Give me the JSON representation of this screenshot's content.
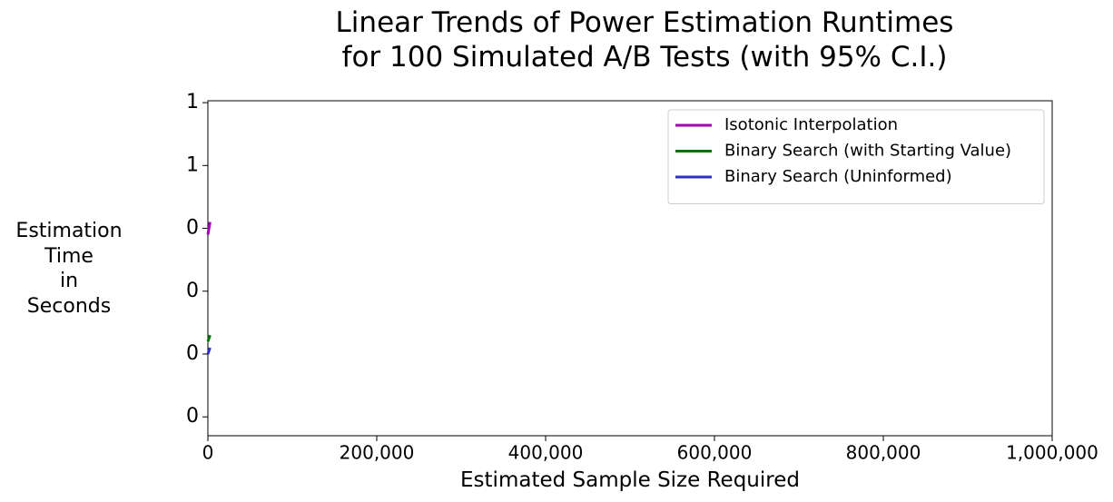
{
  "chart_data": {
    "type": "line",
    "title": "Linear Trends of Power Estimation Runtimes\n for 100 Simulated A/B Tests (with 95% C.I.)",
    "x_label": "Estimated Sample Size Required",
    "y_label": "Estimation\nTime\nin\nSeconds",
    "x": [
      0,
      2500
    ],
    "series": [
      {
        "name": "Isotonic Interpolation",
        "color": "#a000b0",
        "values": [
          0.49,
          0.51
        ]
      },
      {
        "name": "Binary Search (with Starting Value)",
        "color": "#007000",
        "values": [
          0.32,
          0.33
        ]
      },
      {
        "name": "Binary Search (Uninformed)",
        "color": "#3030c0",
        "values": [
          0.3,
          0.31
        ]
      }
    ],
    "xlim": [
      0,
      1000000
    ],
    "xticks": [
      0,
      {
        "value": 200000,
        "label": "200,000"
      },
      {
        "value": 400000,
        "label": "400,000"
      },
      {
        "value": 600000,
        "label": "600,000"
      },
      {
        "value": 800000,
        "label": "800,000"
      },
      {
        "value": 1000000,
        "label": "1,000,000"
      }
    ],
    "ylim": [
      0.17,
      0.703
    ],
    "yticks": [
      {
        "value": 0.2,
        "label": "0"
      },
      {
        "value": 0.3,
        "label": "0"
      },
      {
        "value": 0.4,
        "label": "0"
      },
      {
        "value": 0.5,
        "label": "0"
      },
      {
        "value": 0.6,
        "label": "1"
      },
      {
        "value": 0.7,
        "label": "1"
      }
    ],
    "legend": "upper right"
  }
}
